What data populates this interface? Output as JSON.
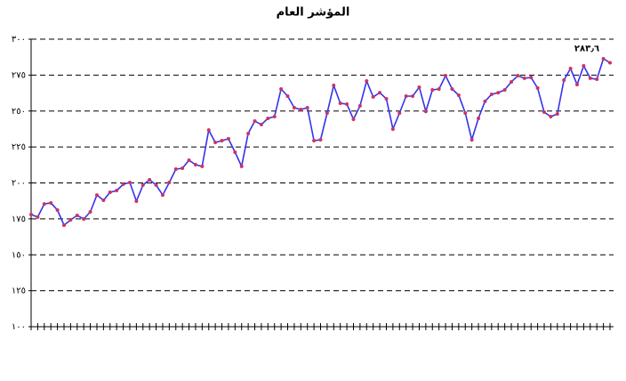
{
  "chart_data": {
    "type": "line",
    "title": "المؤشر العام",
    "categories": [
      null,
      null,
      null,
      null,
      null,
      null,
      null,
      null,
      null,
      null,
      null,
      null,
      null,
      null,
      null,
      null,
      null,
      null,
      null,
      null,
      null,
      null,
      null,
      null,
      null,
      null,
      null,
      null,
      null,
      null,
      null,
      null,
      null,
      null,
      null,
      null,
      null,
      null,
      null,
      null,
      null,
      null,
      null,
      null,
      null,
      null,
      null,
      null,
      null,
      null,
      null,
      null,
      null,
      null,
      null,
      null,
      null,
      null,
      null,
      null,
      null,
      null,
      null,
      null,
      null,
      null,
      null,
      null,
      null,
      null,
      null,
      null,
      null,
      null,
      null,
      null,
      null,
      null,
      null,
      null,
      null,
      null,
      null,
      null,
      null,
      null,
      null,
      null,
      null
    ],
    "series": [
      {
        "name": null,
        "color": "#3333ee",
        "marker_color": "#cc3366",
        "values": [
          178.0,
          176.2,
          185.4,
          186.1,
          181.1,
          170.6,
          174.3,
          177.4,
          174.9,
          179.9,
          191.6,
          187.9,
          193.5,
          194.7,
          199.1,
          200.3,
          187.3,
          198.5,
          202.2,
          198.5,
          191.6,
          200.3,
          209.6,
          210.2,
          215.8,
          212.7,
          211.5,
          236.8,
          228.2,
          229.4,
          230.7,
          221.4,
          211.5,
          234.4,
          243.0,
          240.6,
          244.9,
          246.1,
          265.3,
          260.4,
          252.3,
          251.1,
          252.3,
          229.4,
          230.0,
          248.6,
          267.8,
          255.4,
          254.8,
          244.3,
          253.6,
          270.9,
          259.8,
          262.8,
          258.5,
          237.5,
          248.6,
          260.4,
          260.4,
          266.6,
          249.8,
          264.7,
          265.3,
          274.6,
          265.3,
          261.0,
          248.6,
          230.0,
          244.9,
          256.7,
          261.6,
          262.8,
          264.7,
          270.3,
          274.6,
          272.8,
          273.4,
          266.0,
          249.2,
          246.1,
          248.0,
          271.5,
          279.6,
          268.4,
          281.4,
          272.8,
          272.1,
          286.4,
          283.6
        ],
        "value_labels": [
          null,
          null,
          null,
          null,
          null,
          null,
          null,
          null,
          null,
          null,
          null,
          null,
          null,
          null,
          null,
          null,
          null,
          null,
          null,
          null,
          null,
          null,
          null,
          null,
          null,
          null,
          null,
          null,
          null,
          null,
          null,
          null,
          null,
          null,
          null,
          null,
          null,
          null,
          null,
          null,
          null,
          null,
          null,
          null,
          null,
          null,
          null,
          null,
          null,
          null,
          null,
          null,
          null,
          null,
          null,
          null,
          null,
          null,
          null,
          null,
          null,
          null,
          null,
          null,
          null,
          null,
          null,
          null,
          null,
          null,
          null,
          null,
          null,
          null,
          null,
          null,
          null,
          null,
          null,
          null,
          null,
          null,
          null,
          null,
          null,
          null,
          null,
          null,
          "٢٨٣٫٦"
        ]
      }
    ],
    "ylim": [
      100,
      300
    ],
    "yticks": [
      {
        "value": 100,
        "label": "١٠٠"
      },
      {
        "value": 125,
        "label": "١٢٥"
      },
      {
        "value": 150,
        "label": "١٥٠"
      },
      {
        "value": 175,
        "label": "١٧٥"
      },
      {
        "value": 200,
        "label": "٢٠٠"
      },
      {
        "value": 225,
        "label": "٢٢٥"
      },
      {
        "value": 250,
        "label": "٢٥٠"
      },
      {
        "value": 275,
        "label": "٢٧٥"
      },
      {
        "value": 300,
        "label": "٣٠٠"
      }
    ],
    "grid": true
  }
}
